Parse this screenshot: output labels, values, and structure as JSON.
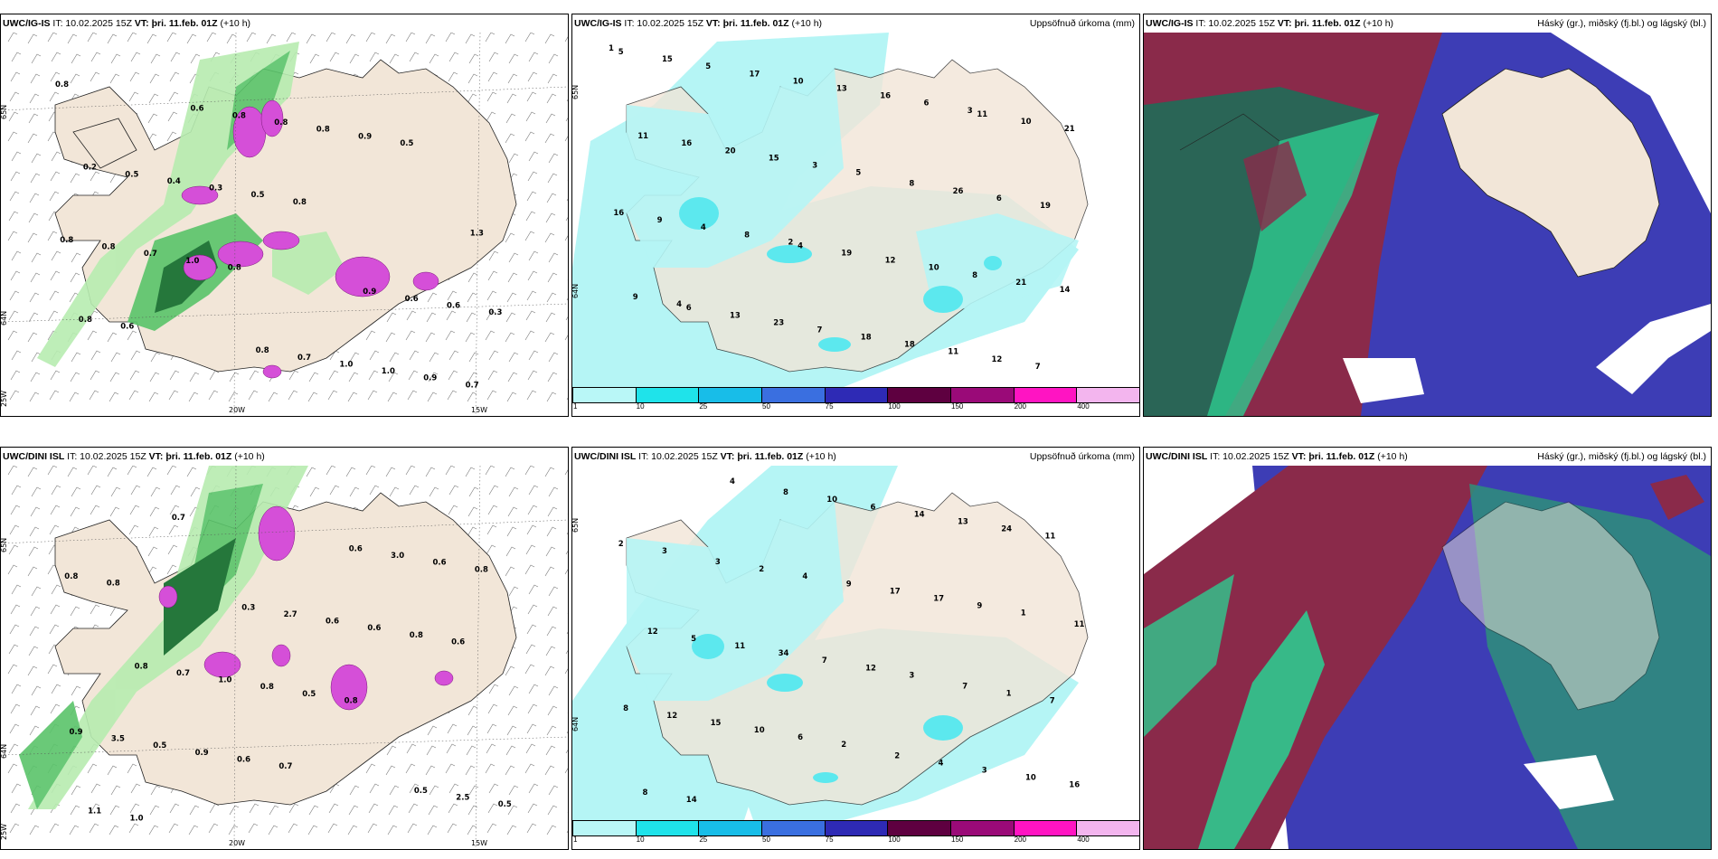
{
  "colors": {
    "land": "#f2e6d8",
    "precip_light": "#b5f5f5",
    "precip_mid": "#5ce8ee",
    "green_light": "#b7ecb0",
    "green_mid": "#5ac46a",
    "green_dark": "#0f6b2b",
    "magenta": "#d54fd8",
    "cloud_high": "#8a2a4a",
    "cloud_mid": "#3d3db5",
    "cloud_low": "#2ec98f"
  },
  "rows": [
    {
      "model": "UWC/IG-IS",
      "it": "IT: 10.02.2025 15Z",
      "vt_label": "VT:",
      "vt": "þri. 11.feb. 01Z",
      "lead": "(+10 h)",
      "precip_title": "Uppsöfnuð úrkoma (mm)",
      "cloud_title": "Háský (gr.), miðský (fj.bl.) og lágský (bl.)",
      "lat_labels": [
        "65N",
        "64N"
      ],
      "lon_labels": [
        "20W",
        "15W"
      ],
      "lon_edge": "25W",
      "wind_values": [
        "0.8",
        "0.8",
        "0.5",
        "0.6",
        "0.8",
        "0.7",
        "1.0",
        "0.9",
        "0.8",
        "0.5",
        "0.9",
        "0.7",
        "0.8",
        "0.3",
        "0.3",
        "1.0",
        "0.8",
        "0.8",
        "0.6",
        "0.4",
        "1.0",
        "0.8",
        "0.8",
        "0.6",
        "0.5",
        "0.7",
        "1.3",
        "0.6",
        "0.9",
        "0.2",
        "0.8"
      ],
      "precip_values": [
        "1",
        "2",
        "3",
        "4",
        "5",
        "7",
        "8",
        "6",
        "9",
        "3",
        "12",
        "4",
        "16",
        "14",
        "15",
        "11",
        "9",
        "13",
        "21",
        "20",
        "18",
        "16",
        "10",
        "8",
        "16",
        "18",
        "19",
        "17",
        "10",
        "11",
        "7",
        "6",
        "5",
        "12",
        "21",
        "23",
        "26",
        "15",
        "19",
        "10",
        "13",
        "8",
        "5",
        "4",
        "11",
        "6"
      ]
    },
    {
      "model": "UWC/DINI ISL",
      "it": "IT: 10.02.2025 15Z",
      "vt_label": "VT:",
      "vt": "þri. 11.feb. 01Z",
      "lead": "(+10 h)",
      "precip_title": "Uppsöfnuð úrkoma (mm)",
      "cloud_title": "Háský (gr.), miðský (fj.bl.) og lágský (bl.)",
      "lat_labels": [
        "65N",
        "64N"
      ],
      "lon_labels": [
        "20W",
        "15W"
      ],
      "lon_edge": "25W",
      "wind_values": [
        "0.8",
        "0.7",
        "0.6",
        "0.7",
        "0.8",
        "0.8",
        "0.6",
        "0.8",
        "1.0",
        "0.5",
        "0.8",
        "0.9",
        "0.6",
        "1.1",
        "0.8",
        "0.6",
        "0.5",
        "0.6",
        "0.5",
        "1.0",
        "3.0",
        "3.5",
        "2.7",
        "2.5",
        "0.7",
        "0.6",
        "0.9",
        "0.3",
        "0.5",
        "0.8"
      ],
      "precip_values": [
        "3",
        "2",
        "1",
        "4",
        "3",
        "2",
        "6",
        "9",
        "14",
        "12",
        "11",
        "10",
        "17",
        "8",
        "7",
        "24",
        "15",
        "17",
        "16",
        "34",
        "13",
        "12",
        "9",
        "10",
        "11",
        "14",
        "8",
        "4",
        "3",
        "5",
        "6",
        "7",
        "2",
        "4",
        "12",
        "10",
        "1",
        "3",
        "2",
        "11",
        "8",
        "7"
      ]
    }
  ],
  "colorbar": {
    "ticks": [
      "1",
      "10",
      "25",
      "50",
      "75",
      "100",
      "150",
      "200",
      "400"
    ],
    "colors": [
      "#b9f7f7",
      "#1fe3ea",
      "#18bde8",
      "#3a6fe0",
      "#2e2ab5",
      "#5e0040",
      "#9a0a78",
      "#ff14c2",
      "#f3b5ee"
    ]
  }
}
